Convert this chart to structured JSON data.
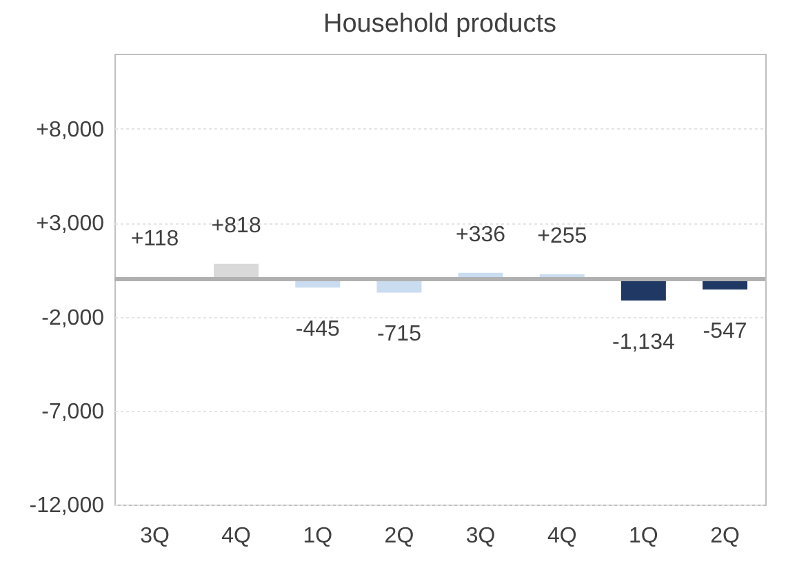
{
  "chart_data": {
    "type": "bar",
    "title": "Household products",
    "categories": [
      "3Q",
      "4Q",
      "1Q",
      "2Q",
      "3Q",
      "4Q",
      "1Q",
      "2Q"
    ],
    "values": [
      118,
      818,
      -445,
      -715,
      336,
      255,
      -1134,
      -547
    ],
    "colors": [
      "#d9d9d9",
      "#d9d9d9",
      "#c9dcf0",
      "#c9dcf0",
      "#c9dcf0",
      "#c9dcf0",
      "#1f3864",
      "#1f3864"
    ],
    "value_labels": [
      "+118",
      "+818",
      "-445",
      "-715",
      "+336",
      "+255",
      "-1,134",
      "-547"
    ],
    "ylim": [
      -12000,
      12000
    ],
    "yticks": [
      {
        "value": 8000,
        "label": "+8,000"
      },
      {
        "value": 3000,
        "label": "+3,000"
      },
      {
        "value": -2000,
        "label": "-2,000"
      },
      {
        "value": -7000,
        "label": "-7,000"
      },
      {
        "value": -12000,
        "label": "-12,000"
      }
    ],
    "ref_lines": [
      {
        "axis": "y",
        "value": 0,
        "color": "#b0b0b0"
      }
    ],
    "grid": "y"
  }
}
